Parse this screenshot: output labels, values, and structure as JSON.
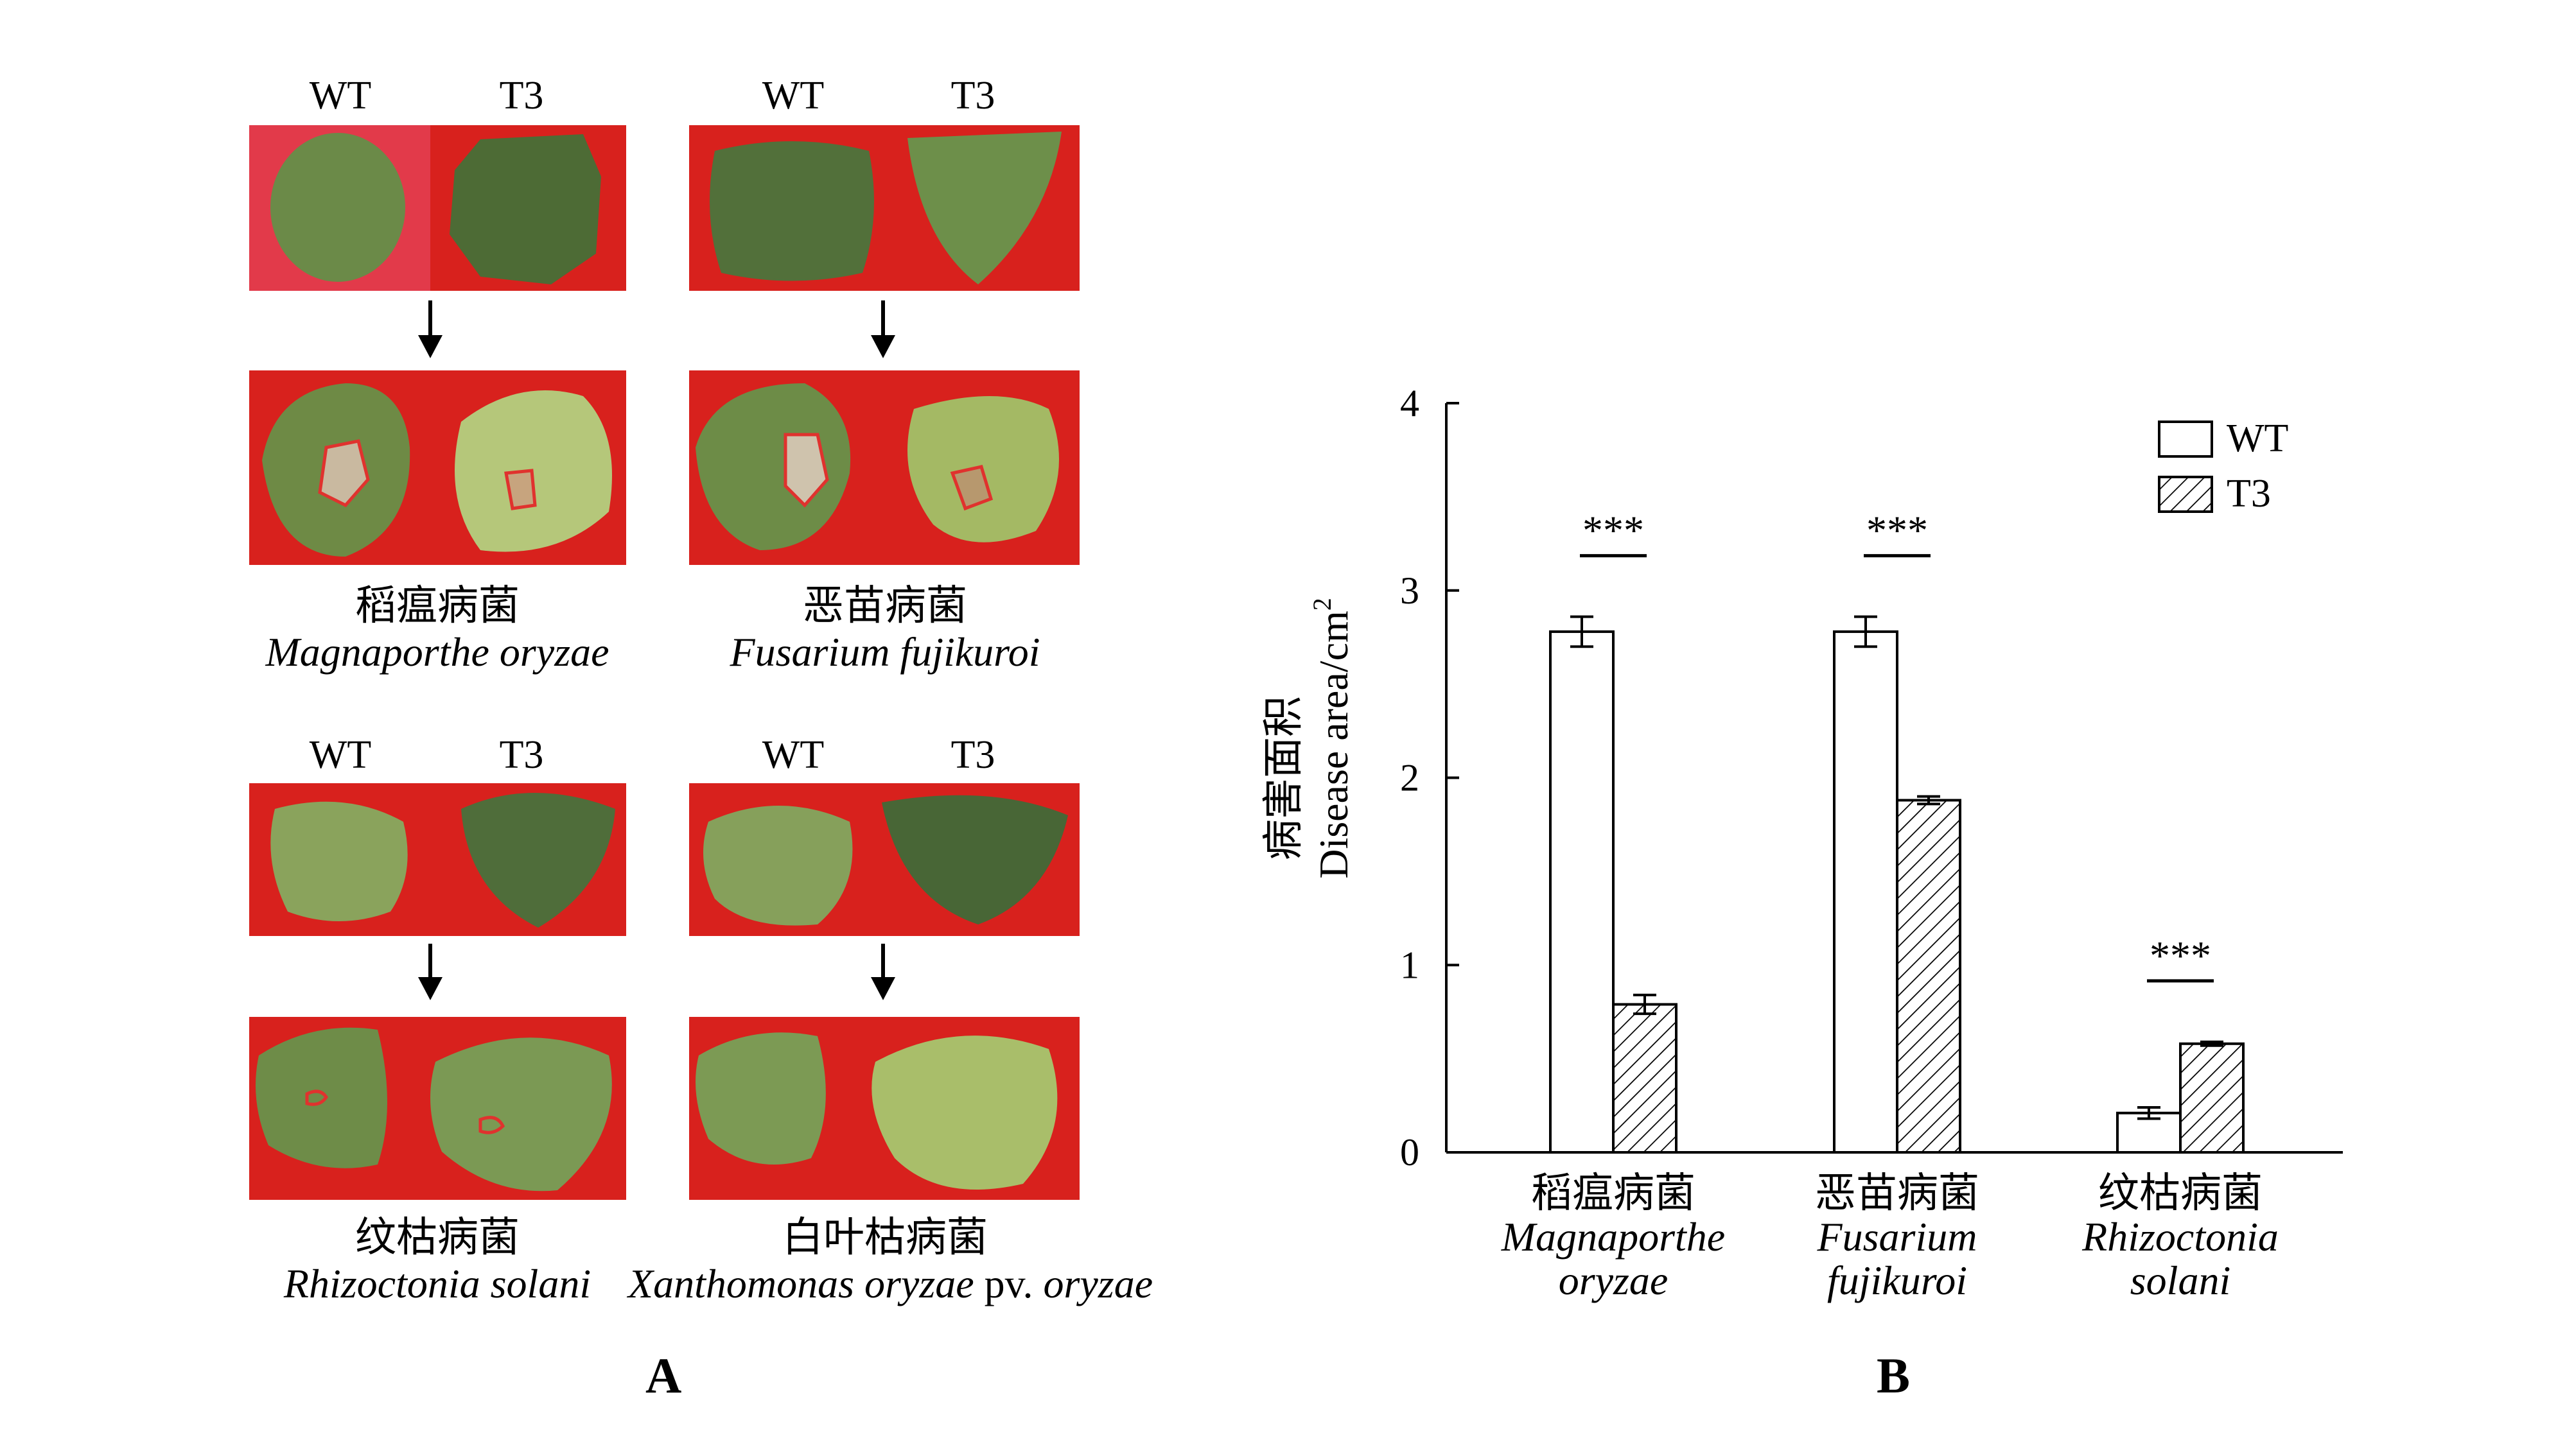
{
  "panel_a": {
    "letter": "A",
    "groups": [
      {
        "wt_label": "WT",
        "t3_label": "T3",
        "name_cn": "稻瘟病菌",
        "name_latin": "Magnaporthe oryzae"
      },
      {
        "wt_label": "WT",
        "t3_label": "T3",
        "name_cn": "恶苗病菌",
        "name_latin": "Fusarium fujikuroi"
      },
      {
        "wt_label": "WT",
        "t3_label": "T3",
        "name_cn": "纹枯病菌",
        "name_latin": "Rhizoctonia solani"
      },
      {
        "wt_label": "WT",
        "t3_label": "T3",
        "name_cn": "白叶枯病菌",
        "name_latin_italic_1": "Xanthomonas oryzae",
        "name_latin_plain": " pv. ",
        "name_latin_italic_2": "oryzae"
      }
    ],
    "colors": {
      "background": "#d8211d",
      "leaf": "#6e8a45",
      "lesion_outline": "#e0322e"
    }
  },
  "panel_b": {
    "letter": "B"
  },
  "chart_data": {
    "type": "bar",
    "ylabel_cn": "病害面积",
    "ylabel_en": "Disease area/cm",
    "ylabel_sup": "2",
    "ylim": [
      0,
      4
    ],
    "yticks": [
      "0",
      "1",
      "2",
      "3",
      "4"
    ],
    "categories": [
      {
        "cn": "稻瘟病菌",
        "latin": [
          "Magnaporthe",
          "oryzae"
        ]
      },
      {
        "cn": "恶苗病菌",
        "latin": [
          "Fusarium",
          "fujikuroi"
        ]
      },
      {
        "cn": "纹枯病菌",
        "latin": [
          "Rhizoctonia",
          "solani"
        ]
      }
    ],
    "series": [
      {
        "name": "WT",
        "fill": "open",
        "values": [
          2.78,
          2.78,
          0.21
        ],
        "errors": [
          0.08,
          0.08,
          0.03
        ]
      },
      {
        "name": "T3",
        "fill": "hatched",
        "values": [
          0.79,
          1.88,
          0.58
        ],
        "errors": [
          0.05,
          0.02,
          0.01
        ]
      }
    ],
    "significance": [
      "***",
      "***",
      "***"
    ],
    "legend_position": "top-right"
  }
}
